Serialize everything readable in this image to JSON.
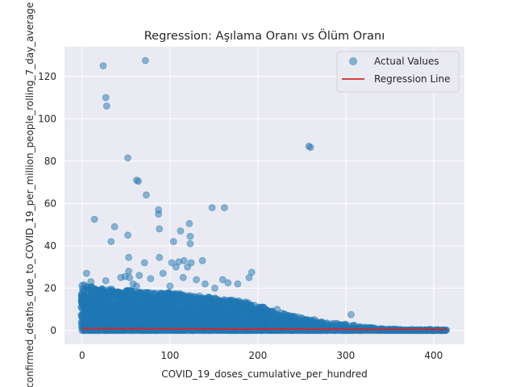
{
  "chart_data": {
    "type": "scatter",
    "title": "Regression: Aşılama Oranı vs Ölüm Oranı",
    "xlabel": "COVID_19_doses_cumulative_per_hundred",
    "ylabel": "confirmed_deaths_due_to_COVID_19_per_million_people_rolling_7_day_average",
    "xlim": [
      -20,
      435
    ],
    "ylim": [
      -6.5,
      134
    ],
    "xticks": [
      0,
      100,
      200,
      300,
      400
    ],
    "yticks": [
      0,
      20,
      40,
      60,
      80,
      100,
      120
    ],
    "grid": true,
    "legend": "top-right",
    "colors": {
      "points": "#1f77b4",
      "line": "#d62728",
      "background": "#eaeaf2",
      "grid": "#ffffff"
    },
    "series": [
      {
        "name": "Actual Values",
        "kind": "scatter",
        "notable_points": [
          [
            24,
            125
          ],
          [
            72,
            127.5
          ],
          [
            27,
            110
          ],
          [
            28,
            106
          ],
          [
            52,
            81.5
          ],
          [
            62,
            71
          ],
          [
            64,
            70.5
          ],
          [
            73,
            64
          ],
          [
            258,
            87
          ],
          [
            260,
            86.5
          ],
          [
            87,
            57
          ],
          [
            87,
            55
          ],
          [
            14,
            52.5
          ],
          [
            148,
            58
          ],
          [
            162,
            58
          ],
          [
            122,
            50.5
          ],
          [
            37,
            49
          ],
          [
            88,
            48
          ],
          [
            112,
            47
          ],
          [
            123,
            44.5
          ],
          [
            52,
            45
          ],
          [
            33,
            42
          ],
          [
            104,
            42
          ],
          [
            123,
            41
          ],
          [
            44,
            25
          ],
          [
            49,
            25.5
          ],
          [
            54,
            25
          ],
          [
            53,
            34.5
          ],
          [
            71,
            32
          ],
          [
            88,
            34.5
          ],
          [
            102,
            32
          ],
          [
            107,
            30
          ],
          [
            110,
            32.5
          ],
          [
            116,
            33
          ],
          [
            120,
            30
          ],
          [
            124,
            32
          ],
          [
            137,
            33
          ],
          [
            160,
            24
          ],
          [
            166,
            22.5
          ],
          [
            177,
            22
          ],
          [
            190,
            25
          ],
          [
            193,
            27.5
          ],
          [
            166,
            14
          ],
          [
            206,
            11
          ],
          [
            222,
            10
          ],
          [
            306,
            7.5
          ],
          [
            27,
            23.5
          ],
          [
            53,
            28
          ],
          [
            58,
            22
          ],
          [
            62,
            21
          ],
          [
            65,
            26
          ],
          [
            78,
            24.5
          ],
          [
            92,
            27
          ],
          [
            100,
            21
          ],
          [
            115,
            25
          ],
          [
            130,
            24
          ],
          [
            140,
            22
          ],
          [
            151,
            20
          ],
          [
            5,
            27
          ],
          [
            10,
            23
          ]
        ],
        "density_envelope": {
          "x": [
            0,
            10,
            20,
            30,
            40,
            60,
            80,
            100,
            120,
            140,
            160,
            180,
            200,
            220,
            240,
            260,
            280,
            300,
            320,
            340,
            360,
            380,
            400,
            415
          ],
          "y_max": [
            22,
            21,
            20,
            20,
            19,
            19,
            18,
            18,
            17,
            16,
            15,
            14,
            12,
            9,
            7,
            5.5,
            4,
            3,
            2,
            0.8,
            0.6,
            0.5,
            0.5,
            0.3
          ]
        }
      },
      {
        "name": "Regression Line",
        "kind": "line",
        "x": [
          0,
          415
        ],
        "y": [
          0.9,
          0.5
        ]
      }
    ]
  }
}
